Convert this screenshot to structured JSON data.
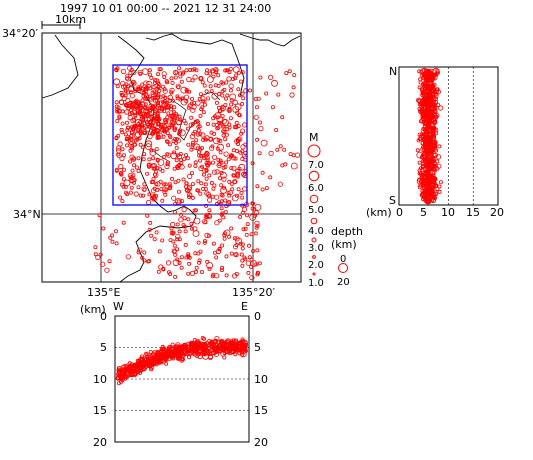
{
  "header": {
    "period": "1997  10  01  00:00   --  2021  12  31  24:00",
    "scale_label": "10km"
  },
  "map": {
    "lat_labels": [
      "34°20′",
      "34°N"
    ],
    "lon_labels": [
      "135°E",
      "135°20′"
    ],
    "magnitude_title": "M",
    "magnitude_values": [
      "7.0",
      "6.0",
      "5.0",
      "4.0",
      "3.0",
      "2.0",
      "1.0"
    ],
    "depth_title": "depth\n(km)",
    "depth_title_line1": "depth",
    "depth_title_line2": "(km)",
    "depth_values": [
      "0",
      "20"
    ],
    "colors": {
      "event": "#ff0000",
      "region_box": "#0000ff",
      "coastline": "#000000"
    }
  },
  "ns_section": {
    "top_label": "N",
    "bottom_label": "S",
    "axis_unit": "(km)",
    "ticks": [
      "0",
      "5",
      "10",
      "15",
      "20"
    ]
  },
  "ew_section": {
    "left_label": "W",
    "right_label": "E",
    "axis_unit": "(km)",
    "ticks": [
      "0",
      "5",
      "10",
      "15",
      "20"
    ]
  }
}
